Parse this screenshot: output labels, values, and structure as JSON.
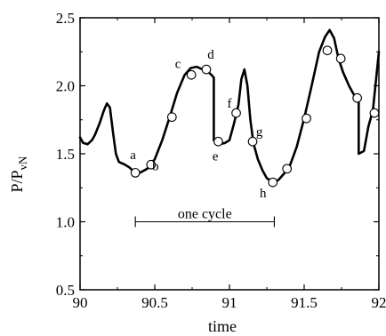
{
  "chart_data": {
    "type": "line",
    "xlabel": "time",
    "ylabel_main": "P/P",
    "ylabel_sub": "vN",
    "xlim": [
      90,
      92
    ],
    "ylim": [
      0.5,
      2.5
    ],
    "x_ticks": [
      {
        "value": 90,
        "label": "90"
      },
      {
        "value": 90.5,
        "label": "90.5"
      },
      {
        "value": 91,
        "label": "91"
      },
      {
        "value": 91.5,
        "label": "91.5"
      },
      {
        "value": 92,
        "label": "92"
      }
    ],
    "y_ticks": [
      {
        "value": 0.5,
        "label": "0.5"
      },
      {
        "value": 1.0,
        "label": "1.0"
      },
      {
        "value": 1.5,
        "label": "1.5"
      },
      {
        "value": 2.0,
        "label": "2.0"
      },
      {
        "value": 2.5,
        "label": "2.5"
      }
    ],
    "series": [
      {
        "x": [
          90.0,
          90.02,
          90.05,
          90.08,
          90.1,
          90.13,
          90.16,
          90.18,
          90.2,
          90.22,
          90.24,
          90.26,
          90.28,
          90.3,
          90.33,
          90.36,
          90.4,
          90.45,
          90.5,
          90.55,
          90.6,
          90.65,
          90.7,
          90.74,
          90.78,
          90.82,
          90.85,
          90.88,
          90.895,
          90.895,
          90.93,
          90.97,
          91.0,
          91.03,
          91.06,
          91.08,
          91.1,
          91.12,
          91.14,
          91.16,
          91.19,
          91.22,
          91.25,
          91.28,
          91.3,
          91.33,
          91.37,
          91.4,
          91.45,
          91.5,
          91.55,
          91.6,
          91.64,
          91.67,
          91.7,
          91.73,
          91.76,
          91.8,
          91.84,
          91.865,
          91.865,
          91.9,
          91.93,
          91.96,
          92.0
        ],
        "y": [
          1.62,
          1.58,
          1.57,
          1.6,
          1.64,
          1.72,
          1.82,
          1.87,
          1.84,
          1.66,
          1.5,
          1.44,
          1.43,
          1.42,
          1.4,
          1.37,
          1.36,
          1.39,
          1.46,
          1.6,
          1.77,
          1.95,
          2.08,
          2.13,
          2.14,
          2.12,
          2.11,
          2.08,
          2.06,
          1.6,
          1.57,
          1.58,
          1.6,
          1.72,
          1.86,
          2.05,
          2.12,
          2.0,
          1.75,
          1.58,
          1.46,
          1.38,
          1.32,
          1.3,
          1.29,
          1.31,
          1.36,
          1.4,
          1.55,
          1.76,
          2.0,
          2.25,
          2.36,
          2.41,
          2.35,
          2.2,
          2.1,
          2.0,
          1.92,
          1.88,
          1.5,
          1.52,
          1.7,
          1.82,
          2.25
        ]
      }
    ],
    "markers": [
      {
        "x": 90.37,
        "y": 1.36
      },
      {
        "x": 90.475,
        "y": 1.42
      },
      {
        "x": 90.615,
        "y": 1.77
      },
      {
        "x": 90.745,
        "y": 2.08
      },
      {
        "x": 90.845,
        "y": 2.12
      },
      {
        "x": 90.925,
        "y": 1.59
      },
      {
        "x": 91.045,
        "y": 1.8
      },
      {
        "x": 91.155,
        "y": 1.59
      },
      {
        "x": 91.29,
        "y": 1.29
      },
      {
        "x": 91.385,
        "y": 1.39
      },
      {
        "x": 91.515,
        "y": 1.76
      },
      {
        "x": 91.655,
        "y": 2.26
      },
      {
        "x": 91.745,
        "y": 2.2
      },
      {
        "x": 91.855,
        "y": 1.91
      },
      {
        "x": 91.97,
        "y": 1.8
      }
    ],
    "annotations": [
      {
        "text": "a",
        "x": 90.355,
        "y": 1.46
      },
      {
        "text": "b",
        "x": 90.505,
        "y": 1.38
      },
      {
        "text": "c",
        "x": 90.655,
        "y": 2.13
      },
      {
        "text": "d",
        "x": 90.875,
        "y": 2.2
      },
      {
        "text": "e",
        "x": 90.905,
        "y": 1.45
      },
      {
        "text": "f",
        "x": 91.0,
        "y": 1.84
      },
      {
        "text": "g",
        "x": 91.2,
        "y": 1.63
      },
      {
        "text": "h",
        "x": 91.225,
        "y": 1.18
      }
    ],
    "cycle_span": {
      "x_start": 90.37,
      "x_end": 91.3,
      "y": 1.0,
      "label": "one cycle"
    }
  }
}
